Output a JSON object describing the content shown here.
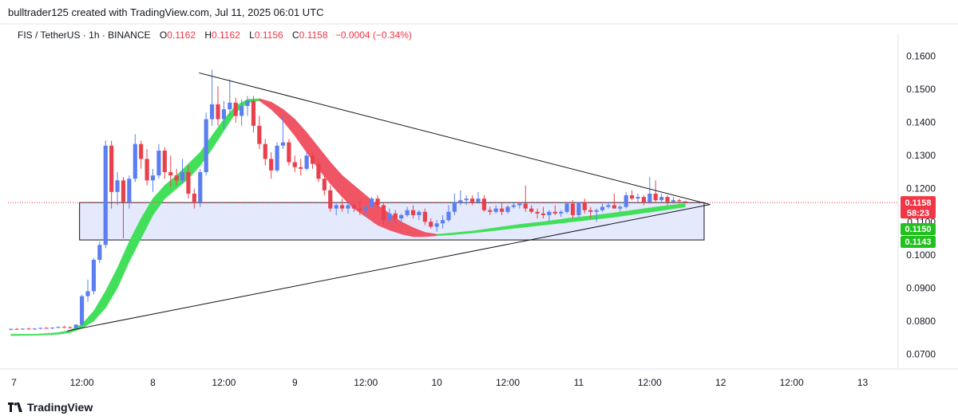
{
  "header": {
    "credit": "bulltrader125 created with TradingView.com, Jul 11, 2025 06:01 UTC"
  },
  "legend": {
    "symbol": "FIS / TetherUS · 1h · BINANCE",
    "o_label": "O",
    "o_value": "0.1162",
    "h_label": "H",
    "h_value": "0.1162",
    "l_label": "L",
    "l_value": "0.1156",
    "c_label": "C",
    "c_value": "0.1158",
    "change": "−0.0004 (−0.34%)"
  },
  "colors": {
    "up": "#5b7ff0",
    "down": "#e8414d",
    "band_up": "#42e05a",
    "band_down": "#f05566",
    "box_fill": "#dfe5fb",
    "box_stroke": "#131722",
    "price_line": "#f23645"
  },
  "chart_data": {
    "type": "candlestick",
    "y_ticks": [
      "0.1600",
      "0.1500",
      "0.1400",
      "0.1300",
      "0.1200",
      "0.1100",
      "0.1000",
      "0.0900",
      "0.0800",
      "0.0700"
    ],
    "ylim": [
      0.0655,
      0.1645
    ],
    "x_ticks": [
      {
        "label": "7",
        "x": 0.5
      },
      {
        "label": "12:00",
        "x": 12
      },
      {
        "label": "8",
        "x": 24
      },
      {
        "label": "12:00",
        "x": 36
      },
      {
        "label": "9",
        "x": 48
      },
      {
        "label": "12:00",
        "x": 60
      },
      {
        "label": "10",
        "x": 72
      },
      {
        "label": "12:00",
        "x": 84
      },
      {
        "label": "11",
        "x": 96
      },
      {
        "label": "12:00",
        "x": 108
      },
      {
        "label": "12",
        "x": 120
      },
      {
        "label": "12:00",
        "x": 132
      },
      {
        "label": "13",
        "x": 144
      }
    ],
    "xlim": [
      -0.5,
      150
    ],
    "candles": [
      [
        0,
        0.0775,
        0.0778,
        0.0772,
        0.0776
      ],
      [
        1,
        0.0776,
        0.0779,
        0.0774,
        0.0775
      ],
      [
        2,
        0.0775,
        0.0778,
        0.0773,
        0.0777
      ],
      [
        3,
        0.0777,
        0.078,
        0.0774,
        0.0776
      ],
      [
        4,
        0.0776,
        0.0779,
        0.0773,
        0.0777
      ],
      [
        5,
        0.0777,
        0.0781,
        0.0775,
        0.0779
      ],
      [
        6,
        0.0779,
        0.0782,
        0.0777,
        0.0778
      ],
      [
        7,
        0.0778,
        0.0781,
        0.0775,
        0.078
      ],
      [
        8,
        0.078,
        0.0784,
        0.0778,
        0.0782
      ],
      [
        9,
        0.0782,
        0.0786,
        0.0779,
        0.0781
      ],
      [
        10,
        0.0781,
        0.0784,
        0.0777,
        0.0779
      ],
      [
        11,
        0.0779,
        0.079,
        0.0777,
        0.0789
      ],
      [
        12,
        0.0789,
        0.088,
        0.0785,
        0.0875
      ],
      [
        13,
        0.0875,
        0.0925,
        0.0858,
        0.089
      ],
      [
        14,
        0.089,
        0.099,
        0.088,
        0.0985
      ],
      [
        15,
        0.0985,
        0.104,
        0.0975,
        0.103
      ],
      [
        16,
        0.103,
        0.1345,
        0.102,
        0.133
      ],
      [
        17,
        0.133,
        0.1345,
        0.114,
        0.119
      ],
      [
        18,
        0.119,
        0.125,
        0.115,
        0.1225
      ],
      [
        19,
        0.1225,
        0.1235,
        0.105,
        0.116
      ],
      [
        20,
        0.116,
        0.124,
        0.114,
        0.123
      ],
      [
        21,
        0.123,
        0.1365,
        0.122,
        0.1335
      ],
      [
        22,
        0.1335,
        0.1345,
        0.126,
        0.129
      ],
      [
        23,
        0.129,
        0.132,
        0.121,
        0.1225
      ],
      [
        24,
        0.1225,
        0.126,
        0.119,
        0.124
      ],
      [
        25,
        0.124,
        0.1335,
        0.123,
        0.1315
      ],
      [
        26,
        0.1315,
        0.1325,
        0.123,
        0.125
      ],
      [
        27,
        0.125,
        0.13,
        0.1205,
        0.124
      ],
      [
        28,
        0.124,
        0.126,
        0.121,
        0.1225
      ],
      [
        29,
        0.1225,
        0.129,
        0.1215,
        0.125
      ],
      [
        30,
        0.125,
        0.127,
        0.117,
        0.1185
      ],
      [
        31,
        0.1185,
        0.12,
        0.114,
        0.116
      ],
      [
        32,
        0.116,
        0.126,
        0.1145,
        0.125
      ],
      [
        33,
        0.125,
        0.143,
        0.124,
        0.141
      ],
      [
        34,
        0.141,
        0.156,
        0.139,
        0.1455
      ],
      [
        35,
        0.1455,
        0.151,
        0.139,
        0.141
      ],
      [
        36,
        0.141,
        0.1465,
        0.138,
        0.144
      ],
      [
        37,
        0.144,
        0.153,
        0.142,
        0.146
      ],
      [
        38,
        0.146,
        0.1475,
        0.14,
        0.142
      ],
      [
        39,
        0.142,
        0.147,
        0.139,
        0.145
      ],
      [
        40,
        0.145,
        0.148,
        0.142,
        0.1465
      ],
      [
        41,
        0.1465,
        0.148,
        0.137,
        0.139
      ],
      [
        42,
        0.139,
        0.142,
        0.132,
        0.1335
      ],
      [
        43,
        0.1335,
        0.135,
        0.127,
        0.129
      ],
      [
        44,
        0.129,
        0.131,
        0.123,
        0.1255
      ],
      [
        45,
        0.1255,
        0.134,
        0.125,
        0.133
      ],
      [
        46,
        0.133,
        0.142,
        0.132,
        0.134
      ],
      [
        47,
        0.134,
        0.135,
        0.127,
        0.128
      ],
      [
        48,
        0.128,
        0.13,
        0.125,
        0.1265
      ],
      [
        49,
        0.1265,
        0.129,
        0.124,
        0.126
      ],
      [
        50,
        0.126,
        0.131,
        0.1255,
        0.13
      ],
      [
        51,
        0.13,
        0.131,
        0.126,
        0.1275
      ],
      [
        52,
        0.1275,
        0.129,
        0.122,
        0.123
      ],
      [
        53,
        0.123,
        0.124,
        0.118,
        0.1195
      ],
      [
        54,
        0.1195,
        0.121,
        0.113,
        0.114
      ],
      [
        55,
        0.114,
        0.116,
        0.112,
        0.115
      ],
      [
        56,
        0.115,
        0.117,
        0.113,
        0.114
      ],
      [
        57,
        0.114,
        0.116,
        0.1125,
        0.115
      ],
      [
        58,
        0.115,
        0.1155,
        0.113,
        0.114
      ],
      [
        59,
        0.114,
        0.1165,
        0.112,
        0.1135
      ],
      [
        60,
        0.1135,
        0.115,
        0.1115,
        0.1145
      ],
      [
        61,
        0.1145,
        0.1175,
        0.114,
        0.117
      ],
      [
        62,
        0.117,
        0.118,
        0.114,
        0.115
      ],
      [
        63,
        0.115,
        0.1155,
        0.109,
        0.1105
      ],
      [
        64,
        0.1105,
        0.114,
        0.1095,
        0.1125
      ],
      [
        65,
        0.1125,
        0.1135,
        0.1095,
        0.111
      ],
      [
        66,
        0.111,
        0.1125,
        0.1095,
        0.112
      ],
      [
        67,
        0.112,
        0.1145,
        0.1115,
        0.1135
      ],
      [
        68,
        0.1135,
        0.115,
        0.111,
        0.112
      ],
      [
        69,
        0.112,
        0.1135,
        0.1105,
        0.113
      ],
      [
        70,
        0.113,
        0.114,
        0.109,
        0.11
      ],
      [
        71,
        0.11,
        0.111,
        0.108,
        0.1085
      ],
      [
        72,
        0.1085,
        0.1105,
        0.107,
        0.1095
      ],
      [
        73,
        0.1095,
        0.112,
        0.108,
        0.1105
      ],
      [
        74,
        0.1105,
        0.115,
        0.11,
        0.113
      ],
      [
        75,
        0.113,
        0.1185,
        0.112,
        0.116
      ],
      [
        76,
        0.116,
        0.1195,
        0.115,
        0.1165
      ],
      [
        77,
        0.1165,
        0.118,
        0.115,
        0.117
      ],
      [
        78,
        0.117,
        0.118,
        0.115,
        0.116
      ],
      [
        79,
        0.116,
        0.119,
        0.1155,
        0.117
      ],
      [
        80,
        0.117,
        0.118,
        0.113,
        0.1135
      ],
      [
        81,
        0.1135,
        0.1145,
        0.112,
        0.113
      ],
      [
        82,
        0.113,
        0.115,
        0.1125,
        0.114
      ],
      [
        83,
        0.114,
        0.116,
        0.112,
        0.113
      ],
      [
        84,
        0.113,
        0.115,
        0.1125,
        0.1145
      ],
      [
        85,
        0.1145,
        0.116,
        0.114,
        0.115
      ],
      [
        86,
        0.115,
        0.116,
        0.114,
        0.1155
      ],
      [
        87,
        0.1155,
        0.121,
        0.113,
        0.114
      ],
      [
        88,
        0.114,
        0.115,
        0.1125,
        0.113
      ],
      [
        89,
        0.113,
        0.114,
        0.111,
        0.1125
      ],
      [
        90,
        0.1125,
        0.1145,
        0.111,
        0.112
      ],
      [
        91,
        0.112,
        0.1135,
        0.11,
        0.113
      ],
      [
        92,
        0.113,
        0.115,
        0.112,
        0.1125
      ],
      [
        93,
        0.1125,
        0.1135,
        0.1115,
        0.113
      ],
      [
        94,
        0.113,
        0.116,
        0.1125,
        0.1155
      ],
      [
        95,
        0.1155,
        0.1165,
        0.111,
        0.112
      ],
      [
        96,
        0.112,
        0.116,
        0.1115,
        0.116
      ],
      [
        97,
        0.116,
        0.117,
        0.1125,
        0.1135
      ],
      [
        98,
        0.1135,
        0.1145,
        0.111,
        0.113
      ],
      [
        99,
        0.113,
        0.114,
        0.11,
        0.1135
      ],
      [
        100,
        0.1135,
        0.1155,
        0.113,
        0.1145
      ],
      [
        101,
        0.1145,
        0.116,
        0.114,
        0.115
      ],
      [
        102,
        0.115,
        0.1185,
        0.1145,
        0.114
      ],
      [
        103,
        0.114,
        0.115,
        0.113,
        0.1145
      ],
      [
        104,
        0.1145,
        0.119,
        0.114,
        0.118
      ],
      [
        105,
        0.118,
        0.1195,
        0.1165,
        0.117
      ],
      [
        106,
        0.117,
        0.1185,
        0.116,
        0.1175
      ],
      [
        107,
        0.1175,
        0.118,
        0.115,
        0.116
      ],
      [
        108,
        0.116,
        0.1235,
        0.1155,
        0.1185
      ],
      [
        109,
        0.1185,
        0.1225,
        0.116,
        0.1165
      ],
      [
        110,
        0.1165,
        0.1185,
        0.116,
        0.1175
      ],
      [
        111,
        0.1175,
        0.118,
        0.115,
        0.116
      ],
      [
        112,
        0.116,
        0.1175,
        0.1155,
        0.1165
      ],
      [
        113,
        0.1165,
        0.117,
        0.1155,
        0.1162
      ],
      [
        114,
        0.1162,
        0.1162,
        0.1156,
        0.1158
      ]
    ],
    "ema_band": [
      [
        0,
        0.076,
        0.0756
      ],
      [
        4,
        0.076,
        0.0757
      ],
      [
        8,
        0.0765,
        0.076
      ],
      [
        10,
        0.0772,
        0.0765
      ],
      [
        12,
        0.079,
        0.0778
      ],
      [
        14,
        0.083,
        0.08
      ],
      [
        16,
        0.089,
        0.084
      ],
      [
        18,
        0.096,
        0.09
      ],
      [
        20,
        0.104,
        0.098
      ],
      [
        22,
        0.111,
        0.105
      ],
      [
        24,
        0.117,
        0.112
      ],
      [
        26,
        0.121,
        0.117
      ],
      [
        28,
        0.124,
        0.12
      ],
      [
        30,
        0.1275,
        0.123
      ],
      [
        32,
        0.131,
        0.127
      ],
      [
        34,
        0.136,
        0.132
      ],
      [
        36,
        0.141,
        0.1375
      ],
      [
        38,
        0.145,
        0.143
      ],
      [
        40,
        0.147,
        0.146
      ],
      [
        42,
        0.1472,
        0.1466
      ],
      [
        44,
        0.1462,
        0.144
      ],
      [
        46,
        0.144,
        0.1405
      ],
      [
        48,
        0.141,
        0.136
      ],
      [
        50,
        0.137,
        0.131
      ],
      [
        52,
        0.1325,
        0.126
      ],
      [
        54,
        0.128,
        0.1215
      ],
      [
        56,
        0.124,
        0.1175
      ],
      [
        58,
        0.121,
        0.114
      ],
      [
        60,
        0.118,
        0.1115
      ],
      [
        62,
        0.115,
        0.109
      ],
      [
        64,
        0.1125,
        0.1075
      ],
      [
        66,
        0.11,
        0.1063
      ],
      [
        68,
        0.1082,
        0.1055
      ],
      [
        70,
        0.1068,
        0.1055
      ],
      [
        72,
        0.1062,
        0.1058
      ],
      [
        74,
        0.1065,
        0.106
      ],
      [
        78,
        0.1072,
        0.1066
      ],
      [
        82,
        0.1082,
        0.1074
      ],
      [
        86,
        0.1092,
        0.1082
      ],
      [
        90,
        0.11,
        0.109
      ],
      [
        94,
        0.111,
        0.1098
      ],
      [
        98,
        0.1118,
        0.1106
      ],
      [
        102,
        0.1127,
        0.1114
      ],
      [
        106,
        0.1137,
        0.1124
      ],
      [
        110,
        0.1147,
        0.1134
      ],
      [
        114,
        0.1155,
        0.1145
      ]
    ],
    "box": {
      "x1": 11.6,
      "x2": 117.2,
      "y1": 0.1158,
      "y2": 0.1045
    },
    "trendlines": [
      {
        "x1": 31.8,
        "y1": 0.155,
        "x2": 118.2,
        "y2": 0.1152
      },
      {
        "x1": 9.5,
        "y1": 0.077,
        "x2": 118.2,
        "y2": 0.1152
      }
    ],
    "last_price": {
      "value": 0.1158,
      "label": "0.1158",
      "countdown": "58:23"
    },
    "band_labels": [
      {
        "value": 0.115,
        "label": "0.1150"
      },
      {
        "value": 0.1143,
        "label": "0.1143"
      }
    ]
  },
  "footer": {
    "brand": "TradingView"
  }
}
